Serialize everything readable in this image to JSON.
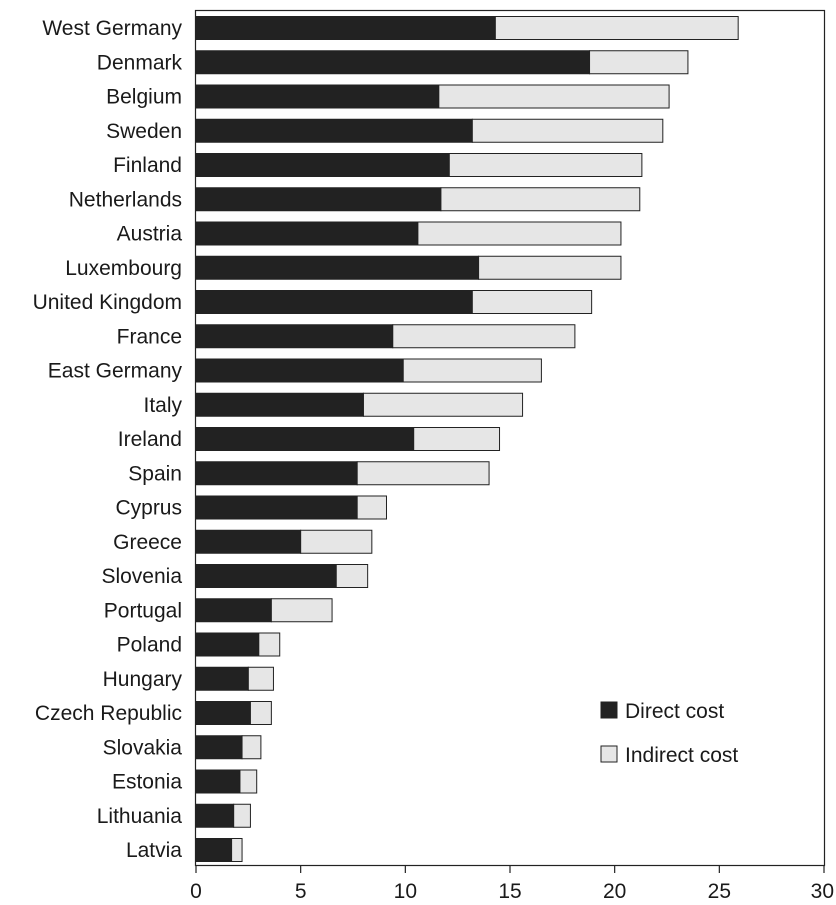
{
  "chart_data": {
    "type": "bar",
    "orientation": "horizontal",
    "stacked": true,
    "categories": [
      "West Germany",
      "Denmark",
      "Belgium",
      "Sweden",
      "Finland",
      "Netherlands",
      "Austria",
      "Luxembourg",
      "United Kingdom",
      "France",
      "East Germany",
      "Italy",
      "Ireland",
      "Spain",
      "Cyprus",
      "Greece",
      "Slovenia",
      "Portugal",
      "Poland",
      "Hungary",
      "Czech Republic",
      "Slovakia",
      "Estonia",
      "Lithuania",
      "Latvia"
    ],
    "series": [
      {
        "name": "Direct cost",
        "color": "#222222",
        "values": [
          14.3,
          18.8,
          11.6,
          13.2,
          12.1,
          11.7,
          10.6,
          13.5,
          13.2,
          9.4,
          9.9,
          8.0,
          10.4,
          7.7,
          7.7,
          5.0,
          6.7,
          3.6,
          3.0,
          2.5,
          2.6,
          2.2,
          2.1,
          1.8,
          1.7
        ]
      },
      {
        "name": "Indirect cost",
        "color": "#e6e6e6",
        "values": [
          11.6,
          4.7,
          11.0,
          9.1,
          9.2,
          9.5,
          9.7,
          6.8,
          5.7,
          8.7,
          6.6,
          7.6,
          4.1,
          6.3,
          1.4,
          3.4,
          1.5,
          2.9,
          1.0,
          1.2,
          1.0,
          0.9,
          0.8,
          0.8,
          0.5
        ]
      }
    ],
    "xlim": [
      0,
      30
    ],
    "xticks": [
      "0",
      "5",
      "10",
      "15",
      "20",
      "25",
      "30"
    ],
    "title": "",
    "xlabel": "",
    "ylabel": "",
    "legend": {
      "placement": "bottom-right"
    }
  }
}
